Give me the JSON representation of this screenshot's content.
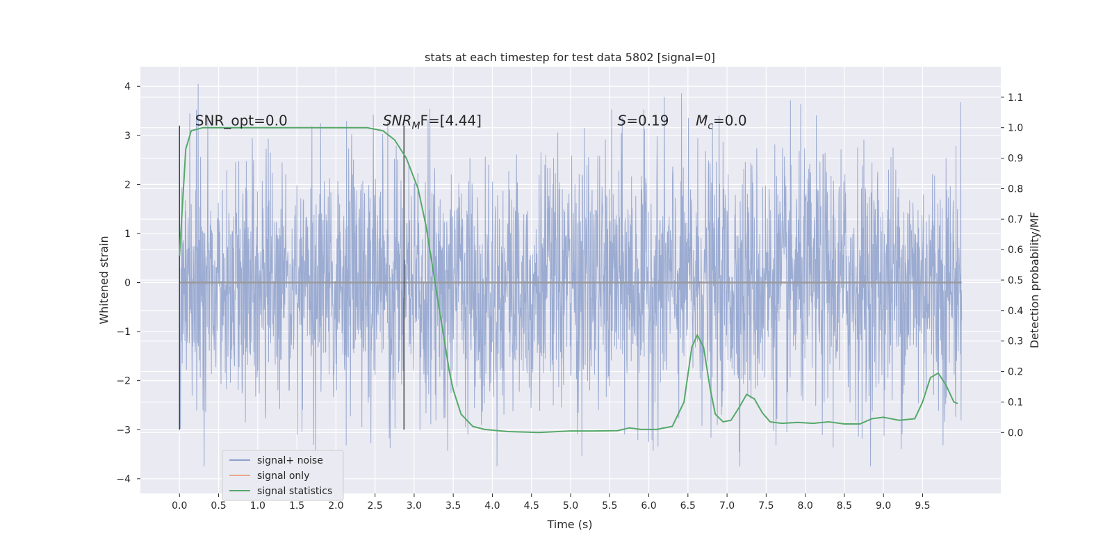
{
  "chart_data": {
    "type": "line",
    "title": "stats at each timestep for test data 5802 [signal=0]",
    "xlabel": "Time (s)",
    "ylabel": "Whitened strain",
    "y2label": "Detection probability/MF",
    "xlim": [
      -0.5,
      10.5
    ],
    "ylim": [
      -4.3,
      4.4
    ],
    "y2lim": [
      -0.2,
      1.2
    ],
    "xticks": [
      "0.0",
      "0.5",
      "1.0",
      "1.5",
      "2.0",
      "2.5",
      "3.0",
      "3.5",
      "4.0",
      "4.5",
      "5.0",
      "5.5",
      "6.0",
      "6.5",
      "7.0",
      "7.5",
      "8.0",
      "8.5",
      "9.0",
      "9.5"
    ],
    "yticks": [
      "4",
      "3",
      "2",
      "1",
      "0",
      "−1",
      "−2",
      "−3",
      "−4"
    ],
    "y2ticks": [
      "1.1",
      "1.0",
      "0.9",
      "0.8",
      "0.7",
      "0.6",
      "0.5",
      "0.4",
      "0.3",
      "0.2",
      "0.1",
      "0.0"
    ],
    "grid": true,
    "legend_position": "lower-left",
    "series": [
      {
        "name": "signal+ noise",
        "color": "#8da0cb",
        "kind": "noise",
        "axis": "left",
        "x_range": [
          0,
          10
        ],
        "amplitude_typical": 1.3,
        "amplitude_max": 4.05
      },
      {
        "name": "signal only",
        "color": "#e8a88e",
        "kind": "line",
        "axis": "left",
        "x": [
          0,
          10
        ],
        "y": [
          0,
          0
        ]
      },
      {
        "name": "signal statistics",
        "color": "#55a868",
        "kind": "line",
        "axis": "right",
        "x": [
          0.0,
          0.08,
          0.15,
          0.3,
          0.6,
          1.0,
          1.5,
          2.0,
          2.4,
          2.6,
          2.75,
          2.9,
          3.05,
          3.15,
          3.25,
          3.35,
          3.45,
          3.5,
          3.6,
          3.75,
          3.9,
          4.2,
          4.6,
          5.0,
          5.3,
          5.6,
          5.75,
          5.9,
          6.1,
          6.3,
          6.45,
          6.55,
          6.62,
          6.7,
          6.78,
          6.85,
          6.95,
          7.05,
          7.15,
          7.25,
          7.35,
          7.45,
          7.55,
          7.7,
          7.9,
          8.1,
          8.3,
          8.5,
          8.7,
          8.85,
          9.0,
          9.1,
          9.2,
          9.4,
          9.5,
          9.6,
          9.7,
          9.8,
          9.9,
          9.95
        ],
        "y": [
          0.58,
          0.93,
          0.99,
          1.0,
          1.0,
          1.0,
          1.0,
          1.0,
          1.0,
          0.99,
          0.96,
          0.9,
          0.8,
          0.68,
          0.52,
          0.36,
          0.2,
          0.14,
          0.06,
          0.02,
          0.01,
          0.003,
          0.0,
          0.005,
          0.005,
          0.006,
          0.015,
          0.01,
          0.01,
          0.02,
          0.1,
          0.28,
          0.32,
          0.28,
          0.15,
          0.06,
          0.035,
          0.04,
          0.08,
          0.125,
          0.11,
          0.065,
          0.035,
          0.03,
          0.033,
          0.03,
          0.035,
          0.028,
          0.028,
          0.045,
          0.05,
          0.045,
          0.04,
          0.045,
          0.1,
          0.18,
          0.195,
          0.155,
          0.1,
          0.095
        ]
      }
    ],
    "vlines": [
      {
        "x": 0.0,
        "ymin": -3.0,
        "ymax": 3.2,
        "color": "#444444"
      },
      {
        "x": 2.87,
        "ymin": -3.0,
        "ymax": 3.2,
        "color": "#444444"
      }
    ],
    "annotations": [
      {
        "text": "SNR_opt=0.0",
        "x": 0.2,
        "y": 3.2
      },
      {
        "text": "SNR",
        "sub": "M",
        "rest": "F=[4.44]",
        "x": 2.6,
        "y": 3.2
      },
      {
        "text": "S",
        "rest": "=0.19",
        "x": 5.6,
        "y": 3.2
      },
      {
        "text": "M",
        "sub": "c",
        "rest": "=0.0",
        "x": 6.6,
        "y": 3.2
      }
    ]
  }
}
